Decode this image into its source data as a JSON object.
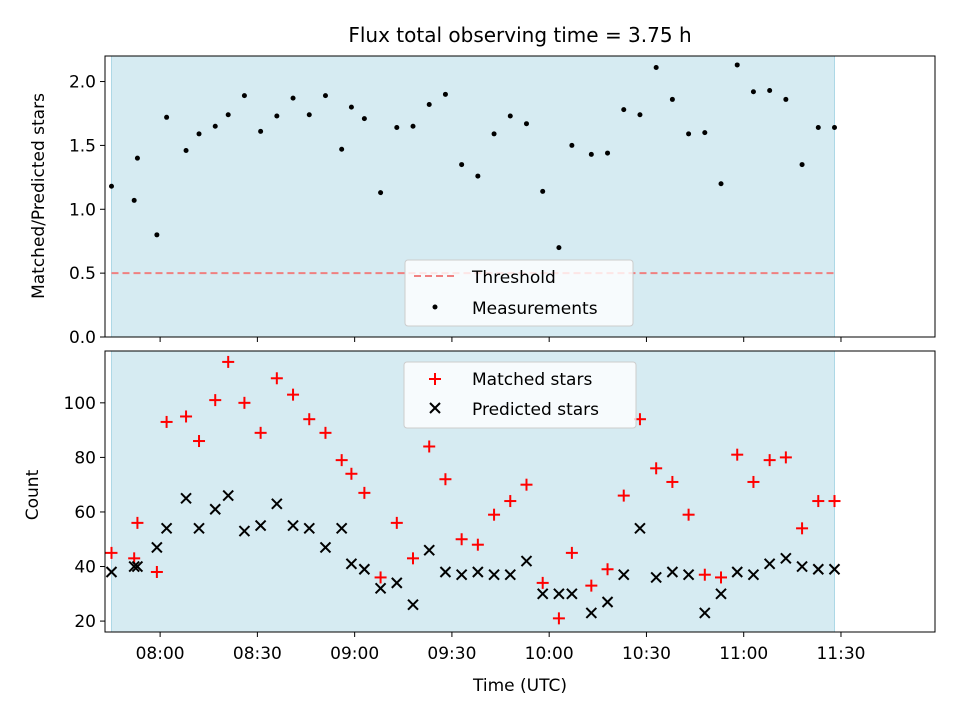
{
  "chart_data": {
    "type": "scatter",
    "title": "Flux total observing time = 3.75 h",
    "xlabel": "Time (UTC)",
    "x_tick_labels": [
      "08:00",
      "08:30",
      "09:00",
      "09:30",
      "10:00",
      "10:30",
      "11:00",
      "11:30"
    ],
    "x_ticks": [
      "08:00",
      "08:30",
      "09:00",
      "09:30",
      "10:00",
      "10:30",
      "11:00",
      "11:30"
    ],
    "xlim": [
      "07:43",
      "11:59"
    ],
    "observing_window": [
      "07:45",
      "11:28"
    ],
    "colors": {
      "observing_window": "#add8e6",
      "threshold": "#f08080",
      "measurements": "#000000",
      "matched": "#ff0000",
      "predicted": "#000000"
    },
    "panels": [
      {
        "ylabel": "Matched/Predicted stars",
        "ylim": [
          0.0,
          2.2
        ],
        "y_tick_labels": [
          "0.0",
          "0.5",
          "1.0",
          "1.5",
          "2.0"
        ],
        "legend_position": "lower center",
        "legend": [
          "Threshold",
          "Measurements"
        ],
        "threshold": 0.5,
        "series": [
          {
            "name": "Measurements",
            "marker": "dot",
            "x": [
              "07:45",
              "07:52",
              "07:53",
              "07:59",
              "08:02",
              "08:08",
              "08:12",
              "08:17",
              "08:21",
              "08:26",
              "08:31",
              "08:36",
              "08:41",
              "08:46",
              "08:51",
              "08:56",
              "08:59",
              "09:03",
              "09:08",
              "09:13",
              "09:18",
              "09:23",
              "09:28",
              "09:33",
              "09:38",
              "09:43",
              "09:48",
              "09:53",
              "09:58",
              "10:03",
              "10:07",
              "10:13",
              "10:18",
              "10:23",
              "10:28",
              "10:33",
              "10:38",
              "10:43",
              "10:48",
              "10:53",
              "10:58",
              "11:03",
              "11:08",
              "11:13",
              "11:18",
              "11:23",
              "11:28"
            ],
            "y": [
              1.18,
              1.07,
              1.4,
              0.8,
              1.72,
              1.46,
              1.59,
              1.65,
              1.74,
              1.89,
              1.61,
              1.73,
              1.87,
              1.74,
              1.89,
              1.47,
              1.8,
              1.71,
              1.13,
              1.64,
              1.65,
              1.82,
              1.9,
              1.35,
              1.26,
              1.59,
              1.73,
              1.67,
              1.14,
              0.7,
              1.5,
              1.43,
              1.44,
              1.78,
              1.74,
              2.11,
              1.86,
              1.59,
              1.6,
              1.2,
              2.13,
              1.92,
              1.93,
              1.86,
              1.35,
              1.64,
              1.64
            ]
          }
        ]
      },
      {
        "ylabel": "Count",
        "ylim": [
          16,
          119
        ],
        "y_tick_labels": [
          "20",
          "40",
          "60",
          "80",
          "100"
        ],
        "legend_position": "upper center",
        "legend": [
          "Matched stars",
          "Predicted stars"
        ],
        "series": [
          {
            "name": "Matched stars",
            "marker": "plus",
            "x": [
              "07:45",
              "07:52",
              "07:53",
              "07:59",
              "08:02",
              "08:08",
              "08:12",
              "08:17",
              "08:21",
              "08:26",
              "08:31",
              "08:36",
              "08:41",
              "08:46",
              "08:51",
              "08:56",
              "08:59",
              "09:03",
              "09:08",
              "09:13",
              "09:18",
              "09:23",
              "09:28",
              "09:33",
              "09:38",
              "09:43",
              "09:48",
              "09:53",
              "09:58",
              "10:03",
              "10:07",
              "10:13",
              "10:18",
              "10:23",
              "10:28",
              "10:33",
              "10:38",
              "10:43",
              "10:48",
              "10:53",
              "10:58",
              "11:03",
              "11:08",
              "11:13",
              "11:18",
              "11:23",
              "11:28"
            ],
            "y": [
              45,
              43,
              56,
              38,
              93,
              95,
              86,
              101,
              115,
              100,
              89,
              109,
              103,
              94,
              89,
              79,
              74,
              67,
              36,
              56,
              43,
              84,
              72,
              50,
              48,
              59,
              64,
              70,
              34,
              21,
              45,
              33,
              39,
              66,
              94,
              76,
              71,
              59,
              37,
              36,
              81,
              71,
              79,
              80,
              54,
              64,
              64
            ]
          },
          {
            "name": "Predicted stars",
            "marker": "x",
            "x": [
              "07:45",
              "07:52",
              "07:53",
              "07:59",
              "08:02",
              "08:08",
              "08:12",
              "08:17",
              "08:21",
              "08:26",
              "08:31",
              "08:36",
              "08:41",
              "08:46",
              "08:51",
              "08:56",
              "08:59",
              "09:03",
              "09:08",
              "09:13",
              "09:18",
              "09:23",
              "09:28",
              "09:33",
              "09:38",
              "09:43",
              "09:48",
              "09:53",
              "09:58",
              "10:03",
              "10:07",
              "10:13",
              "10:18",
              "10:23",
              "10:28",
              "10:33",
              "10:38",
              "10:43",
              "10:48",
              "10:53",
              "10:58",
              "11:03",
              "11:08",
              "11:13",
              "11:18",
              "11:23",
              "11:28"
            ],
            "y": [
              38,
              40,
              40,
              47,
              54,
              65,
              54,
              61,
              66,
              53,
              55,
              63,
              55,
              54,
              47,
              54,
              41,
              39,
              32,
              34,
              26,
              46,
              38,
              37,
              38,
              37,
              37,
              42,
              30,
              30,
              30,
              23,
              27,
              37,
              54,
              36,
              38,
              37,
              23,
              30,
              38,
              37,
              41,
              43,
              40,
              39,
              39
            ]
          }
        ]
      }
    ]
  }
}
